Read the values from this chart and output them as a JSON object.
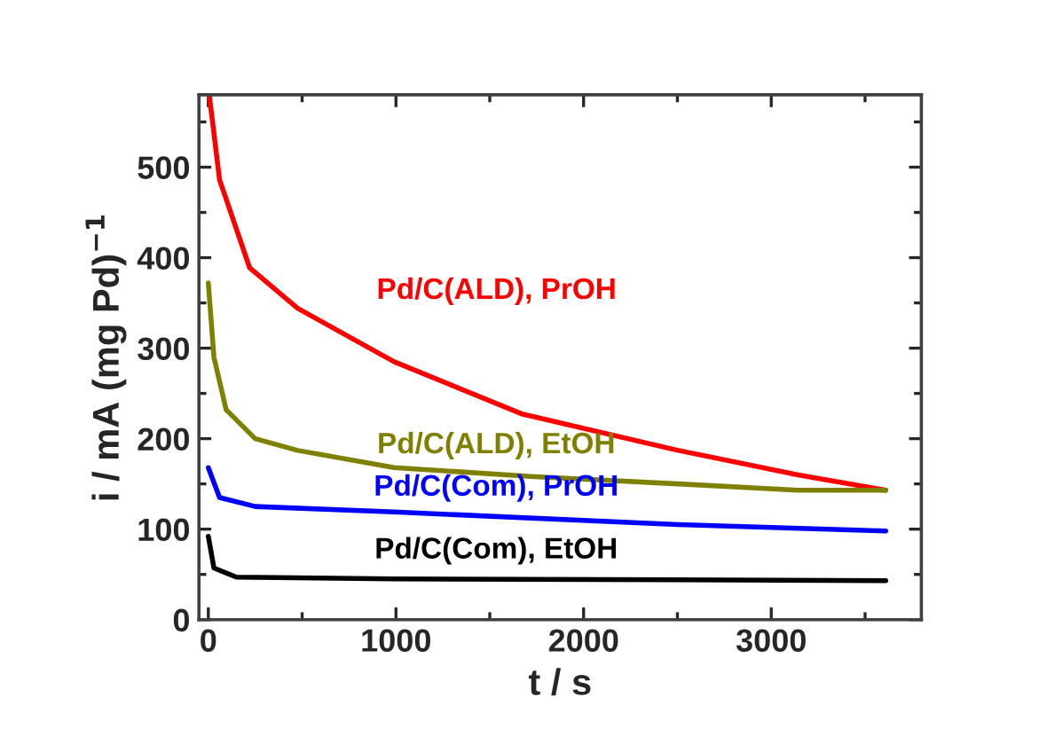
{
  "chart_data": {
    "type": "line",
    "xlabel": "t / s",
    "ylabel": "i / mA (mg Pd)$^{−1}$",
    "xlim": [
      -50,
      3800
    ],
    "ylim": [
      0,
      580
    ],
    "xticks": [
      0,
      1000,
      2000,
      3000
    ],
    "yticks": [
      0,
      100,
      200,
      300,
      400,
      500
    ],
    "grid": false,
    "legend": false,
    "marker": "none",
    "line_style": "solid",
    "series": [
      {
        "name": "Pd/C(ALD), PrOH",
        "color": "#ff0000",
        "x": [
          5,
          60,
          220,
          476,
          990,
          1676,
          2505,
          3143,
          3610
        ],
        "values": [
          580,
          486,
          389,
          344,
          285,
          227,
          187,
          160,
          143
        ]
      },
      {
        "name": "Pd/C(ALD), EtOH",
        "color": "#808000",
        "x": [
          0,
          30,
          95,
          250,
          476,
          990,
          1740,
          2505,
          3143,
          3610
        ],
        "values": [
          372,
          290,
          232,
          200,
          187,
          168,
          158,
          150,
          143,
          143
        ]
      },
      {
        "name": "Pd/C(Com), PrOH",
        "color": "#0000ff",
        "x": [
          0,
          60,
          250,
          990,
          2505,
          3610
        ],
        "values": [
          168,
          135,
          125,
          119,
          105,
          98
        ]
      },
      {
        "name": "Pd/C(Com), EtOH",
        "color": "#000000",
        "x": [
          0,
          30,
          150,
          990,
          2505,
          3610
        ],
        "values": [
          92,
          57,
          47,
          45,
          44,
          43
        ]
      }
    ]
  }
}
